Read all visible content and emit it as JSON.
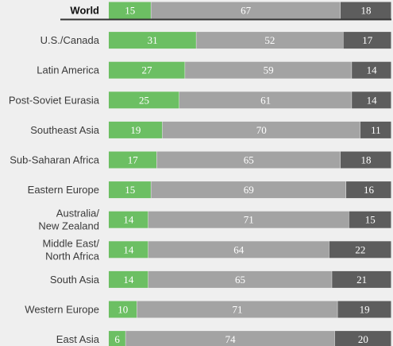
{
  "colors": {
    "background": "#efefef",
    "segment_1": "#6cbf63",
    "segment_2": "#a3a3a3",
    "segment_3": "#5d5d5d",
    "value_text": "#ffffff",
    "label_text": "#3a3a3a",
    "highlight_rule": "#333333"
  },
  "chart_data": {
    "type": "bar",
    "orientation": "horizontal",
    "stacked": true,
    "normalized_total": 100,
    "legend": "none",
    "grid": false,
    "highlighted_category": "World",
    "categories": [
      [
        "World"
      ],
      [
        "U.S./Canada"
      ],
      [
        "Latin America"
      ],
      [
        "Post-Soviet Eurasia"
      ],
      [
        "Southeast Asia"
      ],
      [
        "Sub-Saharan Africa"
      ],
      [
        "Eastern Europe"
      ],
      [
        "Australia/",
        "New Zealand"
      ],
      [
        "Middle East/",
        "North Africa"
      ],
      [
        "South Asia"
      ],
      [
        "Western Europe"
      ],
      [
        "East Asia"
      ]
    ],
    "series": [
      {
        "color": "#6cbf63",
        "values": [
          15,
          31,
          27,
          25,
          19,
          17,
          15,
          14,
          14,
          14,
          10,
          6
        ]
      },
      {
        "color": "#a3a3a3",
        "values": [
          67,
          52,
          59,
          61,
          70,
          65,
          69,
          71,
          64,
          65,
          71,
          74
        ]
      },
      {
        "color": "#5d5d5d",
        "values": [
          18,
          17,
          14,
          14,
          11,
          18,
          16,
          15,
          22,
          21,
          19,
          20
        ]
      }
    ]
  }
}
